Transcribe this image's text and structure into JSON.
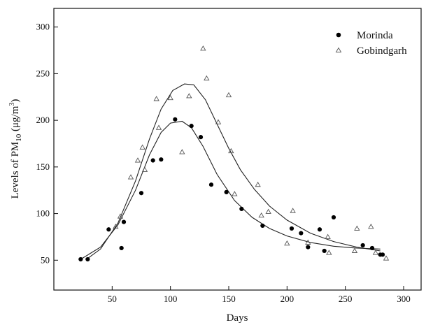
{
  "chart_data": {
    "type": "scatter",
    "xlabel": "Days",
    "ylabel_main": "Levels of PM",
    "ylabel_sub": "10",
    "ylabel_unit_pre": " (μg/m",
    "ylabel_unit_sup": "3",
    "ylabel_unit_post": ")",
    "xlim": [
      0,
      315
    ],
    "ylim": [
      18,
      320
    ],
    "x_ticks": [
      50,
      100,
      150,
      200,
      250,
      300
    ],
    "y_ticks": [
      50,
      100,
      150,
      200,
      250,
      300
    ],
    "legend_position": "top-right",
    "grid": false,
    "series": [
      {
        "name": "Morinda",
        "marker": "filled-circle",
        "color": "#000000",
        "points": [
          [
            23,
            51
          ],
          [
            29,
            51
          ],
          [
            47,
            83
          ],
          [
            58,
            63
          ],
          [
            60,
            91
          ],
          [
            75,
            122
          ],
          [
            85,
            157
          ],
          [
            92,
            158
          ],
          [
            104,
            201
          ],
          [
            118,
            194
          ],
          [
            126,
            182
          ],
          [
            135,
            131
          ],
          [
            148,
            123
          ],
          [
            161,
            105
          ],
          [
            179,
            87
          ],
          [
            204,
            84
          ],
          [
            212,
            79
          ],
          [
            218,
            64
          ],
          [
            228,
            83
          ],
          [
            232,
            60
          ],
          [
            240,
            96
          ],
          [
            265,
            66
          ],
          [
            273,
            63
          ],
          [
            280,
            56
          ],
          [
            282,
            56
          ]
        ],
        "fit": [
          [
            23,
            51
          ],
          [
            40,
            64
          ],
          [
            55,
            88
          ],
          [
            70,
            125
          ],
          [
            82,
            163
          ],
          [
            92,
            187
          ],
          [
            100,
            197
          ],
          [
            110,
            199
          ],
          [
            118,
            192
          ],
          [
            128,
            172
          ],
          [
            140,
            142
          ],
          [
            155,
            114
          ],
          [
            170,
            96
          ],
          [
            185,
            84
          ],
          [
            200,
            76
          ],
          [
            220,
            69
          ],
          [
            240,
            65
          ],
          [
            260,
            63
          ],
          [
            280,
            62
          ]
        ]
      },
      {
        "name": "Gobindgarh",
        "marker": "open-triangle",
        "color": "#555555",
        "points": [
          [
            53,
            86
          ],
          [
            57,
            97
          ],
          [
            66,
            139
          ],
          [
            72,
            157
          ],
          [
            76,
            171
          ],
          [
            78,
            147
          ],
          [
            88,
            223
          ],
          [
            90,
            192
          ],
          [
            100,
            224
          ],
          [
            110,
            166
          ],
          [
            116,
            226
          ],
          [
            128,
            277
          ],
          [
            131,
            245
          ],
          [
            141,
            198
          ],
          [
            150,
            227
          ],
          [
            152,
            167
          ],
          [
            155,
            121
          ],
          [
            175,
            131
          ],
          [
            178,
            98
          ],
          [
            184,
            102
          ],
          [
            200,
            68
          ],
          [
            205,
            103
          ],
          [
            218,
            69
          ],
          [
            235,
            75
          ],
          [
            236,
            58
          ],
          [
            258,
            60
          ],
          [
            260,
            84
          ],
          [
            272,
            86
          ],
          [
            276,
            58
          ],
          [
            285,
            52
          ]
        ],
        "fit": [
          [
            28,
            51
          ],
          [
            40,
            62
          ],
          [
            55,
            90
          ],
          [
            70,
            135
          ],
          [
            82,
            180
          ],
          [
            92,
            212
          ],
          [
            102,
            232
          ],
          [
            112,
            239
          ],
          [
            120,
            238
          ],
          [
            130,
            222
          ],
          [
            140,
            196
          ],
          [
            150,
            170
          ],
          [
            160,
            147
          ],
          [
            172,
            126
          ],
          [
            185,
            108
          ],
          [
            200,
            93
          ],
          [
            220,
            79
          ],
          [
            240,
            70
          ],
          [
            260,
            64
          ],
          [
            280,
            60
          ]
        ]
      }
    ]
  }
}
